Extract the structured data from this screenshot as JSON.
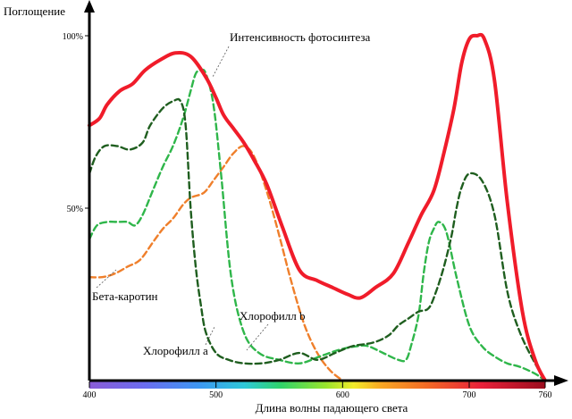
{
  "chart_data": {
    "type": "line",
    "ylabel": "Поглощение",
    "xlabel": "Длина волны падающего света",
    "y_ticks": [
      {
        "value": 50,
        "label": "50%"
      },
      {
        "value": 100,
        "label": "100%"
      }
    ],
    "x_ticks": [
      {
        "value": 400,
        "label": "400"
      },
      {
        "value": 500,
        "label": "500"
      },
      {
        "value": 600,
        "label": "600"
      },
      {
        "value": 700,
        "label": "700"
      },
      {
        "value": 760,
        "label": "760"
      }
    ],
    "xlim": [
      400,
      760
    ],
    "ylim": [
      0,
      100
    ],
    "colors": {
      "photosynthesis": "#f01c2a",
      "chl_a": "#1f5e1f",
      "chl_b": "#2fb64a",
      "beta": "#ef7f2b"
    },
    "series": [
      {
        "name": "Интенсивность фотосинтеза",
        "key": "photosynthesis",
        "x": [
          400,
          408,
          414,
          424,
          434,
          444,
          456,
          468,
          480,
          492,
          500,
          506,
          514,
          522,
          530,
          540,
          552,
          566,
          580,
          592,
          604,
          614,
          626,
          640,
          652,
          662,
          672,
          680,
          688,
          694,
          700,
          706,
          712,
          720,
          730,
          742,
          752,
          760
        ],
        "y": [
          74,
          76,
          80,
          84,
          86,
          90,
          93,
          95,
          94,
          88,
          82,
          77,
          73,
          69,
          64,
          57,
          45,
          32,
          29,
          27,
          25,
          24,
          27,
          31,
          40,
          48,
          55,
          66,
          79,
          92,
          99,
          100,
          99,
          87,
          52,
          20,
          6,
          0
        ]
      },
      {
        "name": "Хлорофилл a",
        "key": "chl_a",
        "x": [
          400,
          405,
          412,
          422,
          432,
          442,
          448,
          458,
          466,
          472,
          476,
          480,
          484,
          488,
          492,
          500,
          510,
          522,
          536,
          550,
          566,
          580,
          594,
          608,
          624,
          636,
          644,
          652,
          660,
          668,
          674,
          680,
          686,
          690,
          694,
          700,
          710,
          720,
          730,
          740,
          752,
          760
        ],
        "y": [
          60,
          65,
          68,
          68,
          67,
          69,
          74,
          79,
          81,
          81,
          74,
          50,
          33,
          22,
          14,
          8,
          6,
          5,
          5,
          6,
          8,
          6,
          8,
          10,
          11,
          13,
          16,
          18,
          20,
          21,
          26,
          33,
          42,
          50,
          56,
          60,
          58,
          48,
          26,
          14,
          5,
          0
        ]
      },
      {
        "name": "Хлорофилл b",
        "key": "chl_b",
        "x": [
          400,
          406,
          414,
          422,
          430,
          436,
          442,
          450,
          458,
          466,
          474,
          480,
          484,
          488,
          492,
          498,
          504,
          512,
          522,
          534,
          550,
          566,
          582,
          598,
          612,
          620,
          632,
          644,
          650,
          654,
          660,
          664,
          668,
          672,
          676,
          682,
          690,
          700,
          710,
          720,
          730,
          740,
          752,
          760
        ],
        "y": [
          41,
          45,
          46,
          46,
          46,
          45,
          48,
          55,
          62,
          68,
          76,
          84,
          89,
          90,
          89,
          80,
          60,
          30,
          14,
          8,
          6,
          5,
          7,
          9,
          10,
          10,
          8,
          6,
          6,
          10,
          19,
          31,
          40,
          44,
          46,
          43,
          30,
          16,
          10,
          7,
          5,
          4,
          2,
          0
        ]
      },
      {
        "name": "Бета-каротин",
        "key": "beta",
        "x": [
          400,
          410,
          420,
          430,
          440,
          450,
          458,
          466,
          474,
          480,
          488,
          492,
          498,
          506,
          514,
          522,
          530,
          540,
          550,
          560,
          570,
          580,
          590,
          600
        ],
        "y": [
          30,
          30,
          31,
          33,
          35,
          40,
          44,
          47,
          51,
          53,
          54,
          55,
          58,
          62,
          66,
          68,
          65,
          55,
          42,
          28,
          16,
          8,
          3,
          0
        ]
      }
    ],
    "annotations": {
      "photosynthesis": "Интенсивность фотосинтеза",
      "beta": "Бета-каротин",
      "chl_b": "Хлорофилл b",
      "chl_a": "Хлорофилл a"
    },
    "grid": false,
    "spectrum_bar": true
  }
}
